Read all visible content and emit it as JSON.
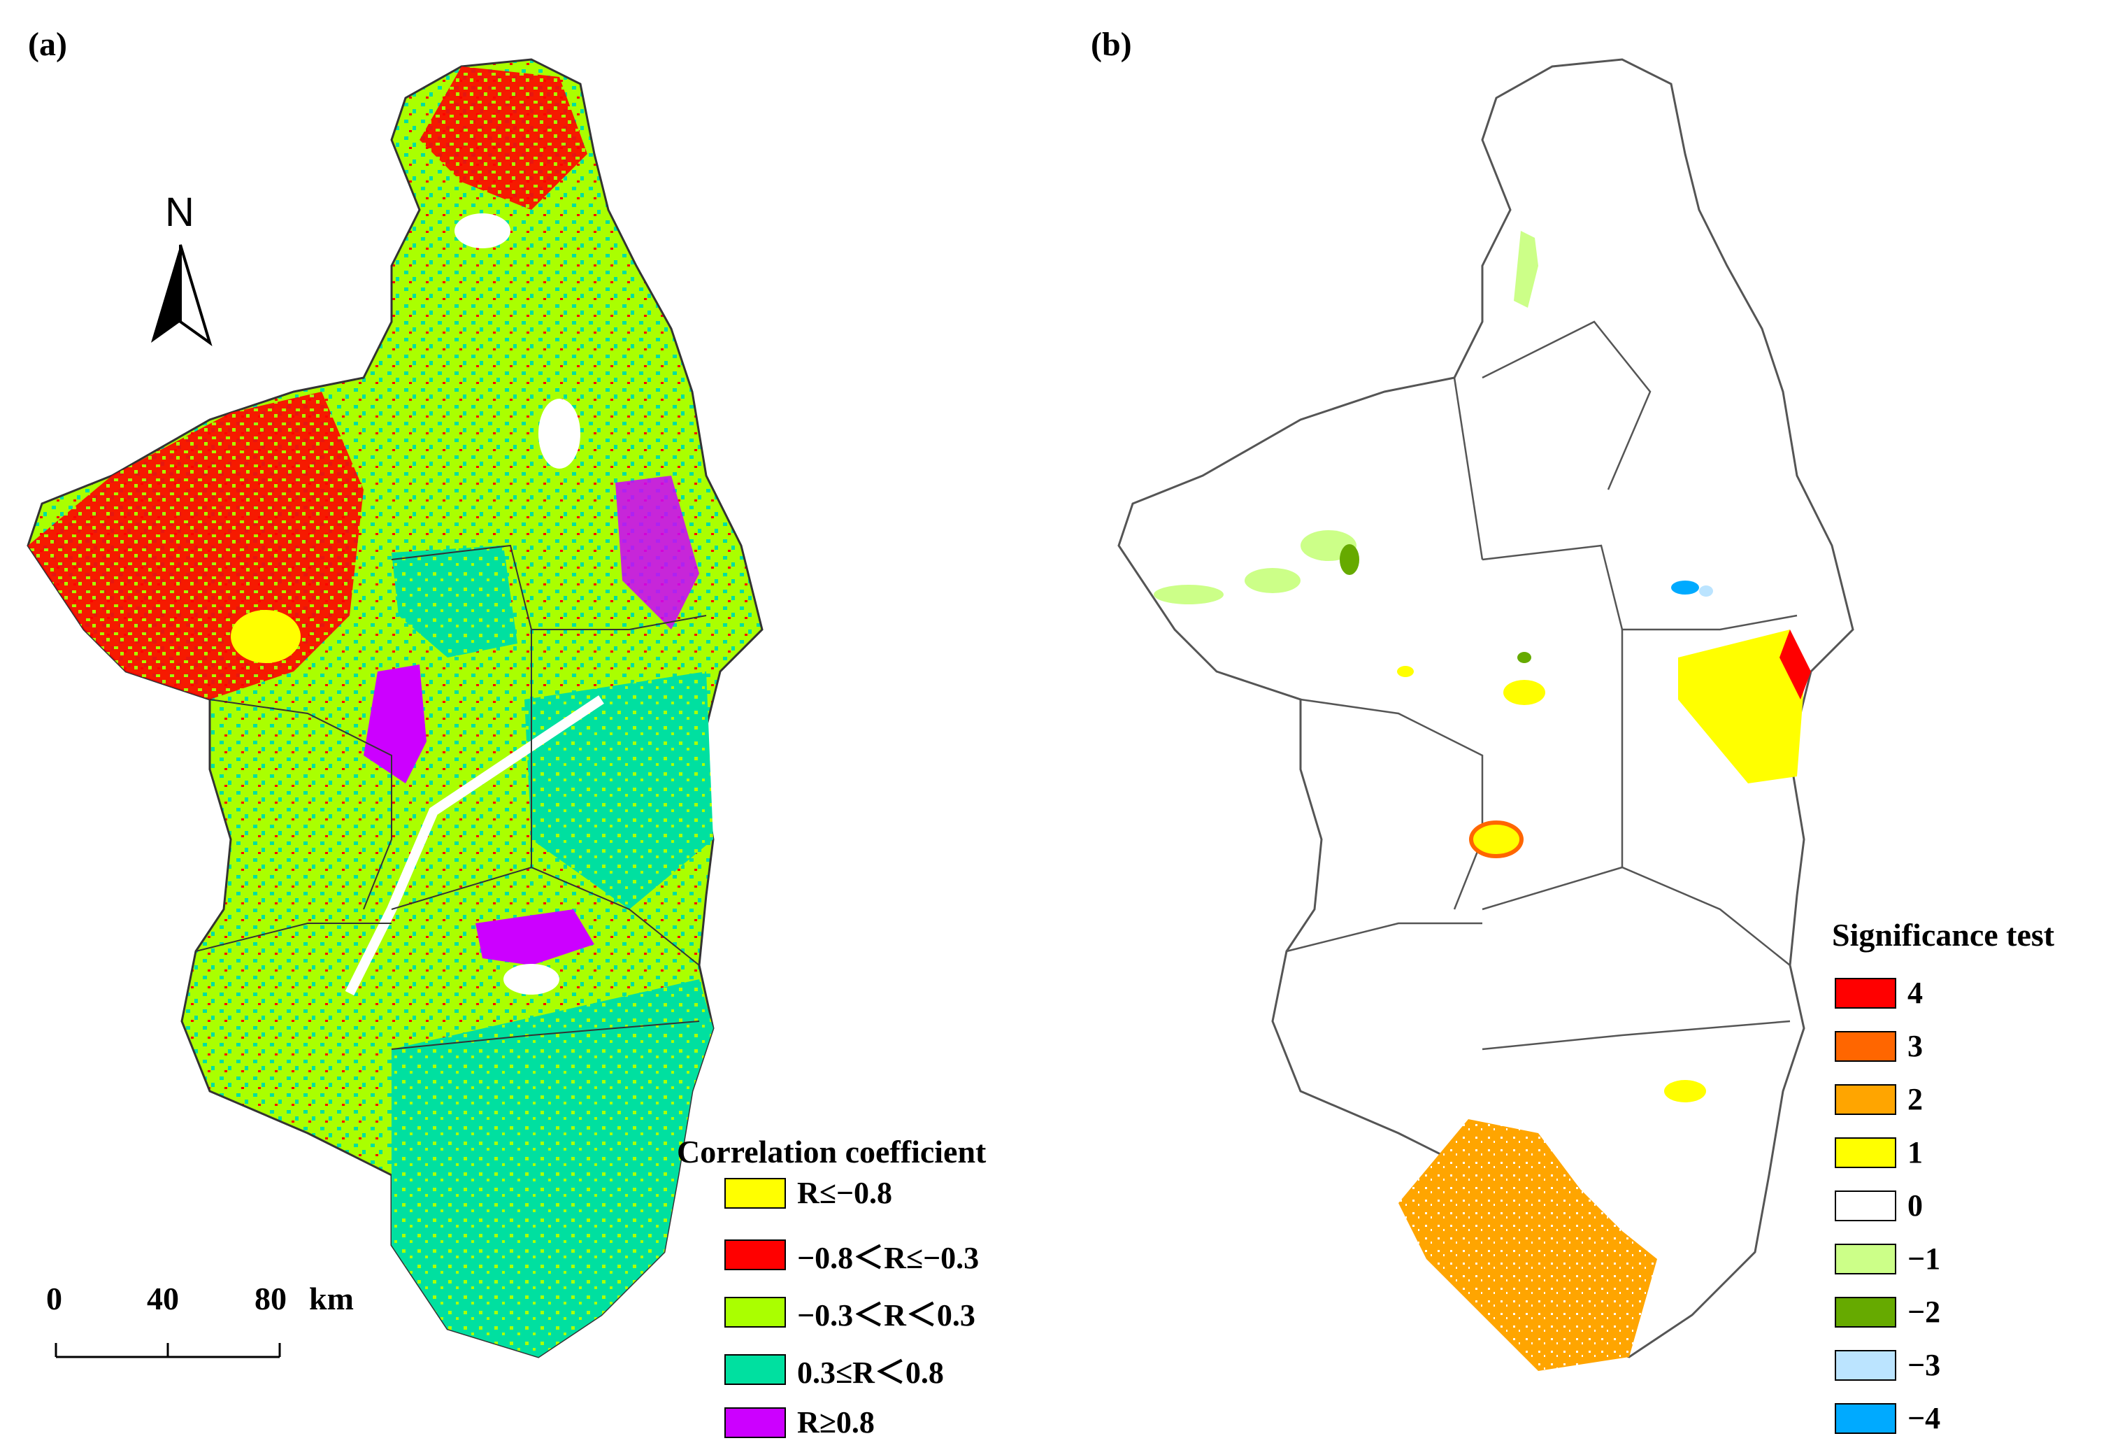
{
  "panel_a": {
    "label": "(a)",
    "legend": {
      "title": "Correlation coefficient",
      "items": [
        {
          "label": "R≤−0.8",
          "color": "#ffff00"
        },
        {
          "label": "−0.8＜R≤−0.3",
          "color": "#ff0000"
        },
        {
          "label": "−0.3＜R＜0.3",
          "color": "#aaff00"
        },
        {
          "label": "0.3≤R＜0.8",
          "color": "#00e0a0"
        },
        {
          "label": "R≥0.8",
          "color": "#cc00ff"
        }
      ]
    },
    "north_arrow": {
      "letter": "N"
    },
    "scale_bar": {
      "ticks": [
        "0",
        "40",
        "80"
      ],
      "unit": "km"
    }
  },
  "panel_b": {
    "label": "(b)",
    "legend": {
      "title": "Significance test",
      "items": [
        {
          "label": "4",
          "color": "#ff0000"
        },
        {
          "label": "3",
          "color": "#ff6600"
        },
        {
          "label": "2",
          "color": "#ffa500"
        },
        {
          "label": "1",
          "color": "#ffff00"
        },
        {
          "label": "0",
          "color": "#ffffff"
        },
        {
          "label": "−1",
          "color": "#ccff88"
        },
        {
          "label": "−2",
          "color": "#66aa00"
        },
        {
          "label": "−3",
          "color": "#bbe4ff"
        },
        {
          "label": "−4",
          "color": "#00aaff"
        }
      ]
    }
  }
}
